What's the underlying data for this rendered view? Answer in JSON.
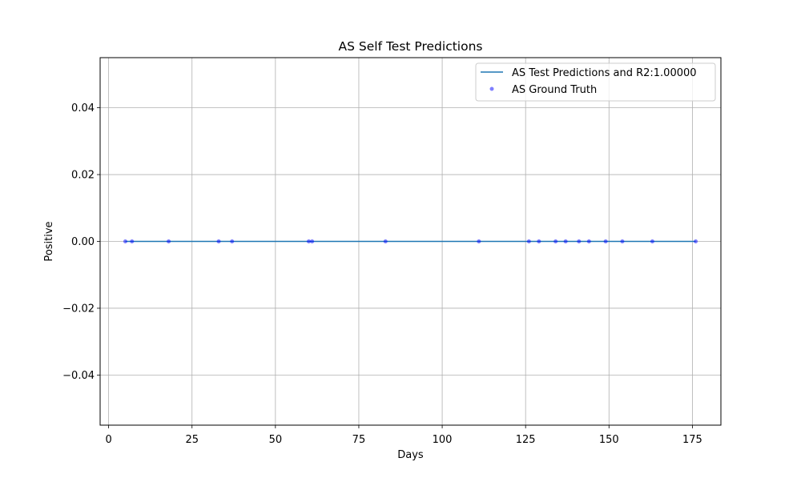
{
  "chart_data": {
    "type": "line",
    "title": "AS Self Test Predictions",
    "xlabel": "Days",
    "ylabel": "Positive",
    "xlim": [
      -2.55,
      183.55
    ],
    "ylim": [
      -0.055,
      0.055
    ],
    "xticks": [
      0,
      25,
      50,
      75,
      100,
      125,
      150,
      175
    ],
    "xtick_labels": [
      "0",
      "25",
      "50",
      "75",
      "100",
      "125",
      "150",
      "175"
    ],
    "yticks": [
      -0.04,
      -0.02,
      0.0,
      0.02,
      0.04
    ],
    "ytick_labels": [
      "−0.04",
      "−0.02",
      "0.00",
      "0.02",
      "0.04"
    ],
    "grid": true,
    "legend_position": "top-right",
    "series": [
      {
        "name": "AS Test Predictions and R2:1.00000",
        "kind": "line",
        "color": "#1f77b4",
        "x": [
          5,
          176
        ],
        "y": [
          0,
          0
        ]
      },
      {
        "name": "AS Ground Truth",
        "kind": "scatter",
        "color": "#0000ff",
        "opacity": 0.5,
        "x": [
          5,
          7,
          18,
          33,
          37,
          60,
          61,
          83,
          111,
          126,
          129,
          134,
          137,
          141,
          144,
          149,
          154,
          163,
          176
        ],
        "y": [
          0,
          0,
          0,
          0,
          0,
          0,
          0,
          0,
          0,
          0,
          0,
          0,
          0,
          0,
          0,
          0,
          0,
          0,
          0
        ]
      }
    ]
  }
}
